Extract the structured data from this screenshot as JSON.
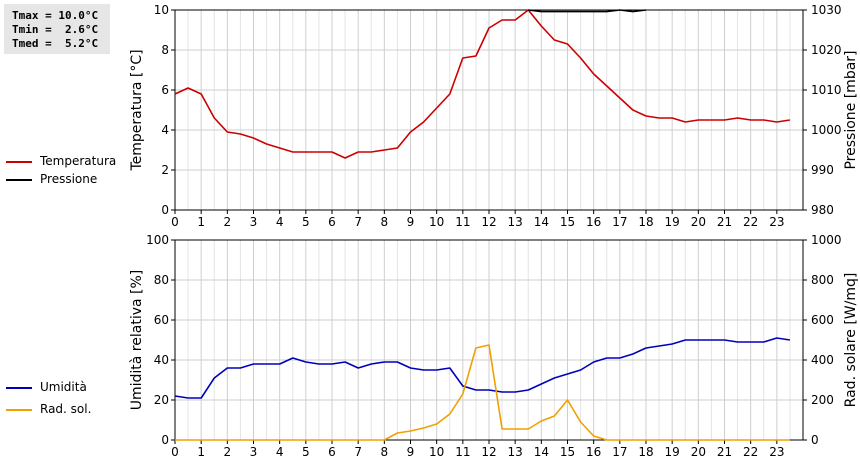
{
  "stats": {
    "tmax": "Tmax = 10.0°C",
    "tmin": "Tmin =  2.6°C",
    "tmed": "Tmed =  5.2°C"
  },
  "legend_top": [
    {
      "label": "Temperatura",
      "color": "#cc0000"
    },
    {
      "label": "Pressione",
      "color": "#000000"
    }
  ],
  "legend_bottom": [
    {
      "label": "Umidità",
      "color": "#0000bb"
    },
    {
      "label": "Rad. sol.",
      "color": "#f0a000"
    }
  ],
  "chart_data": [
    {
      "type": "line",
      "xlabel": "",
      "xlim": [
        0,
        24
      ],
      "xticks": [
        "0",
        "1",
        "2",
        "3",
        "4",
        "5",
        "6",
        "7",
        "8",
        "9",
        "10",
        "11",
        "12",
        "13",
        "14",
        "15",
        "16",
        "17",
        "18",
        "19",
        "20",
        "21",
        "22",
        "23"
      ],
      "ylabel_left": "Temperatura [°C]",
      "ylim_left": [
        0,
        10
      ],
      "yticks_left": [
        "0",
        "2",
        "4",
        "6",
        "8",
        "10"
      ],
      "ylabel_right": "Pressione [mbar]",
      "ylim_right": [
        980,
        1030
      ],
      "yticks_right": [
        "980",
        "990",
        "1000",
        "1010",
        "1020",
        "1030"
      ],
      "grid": true,
      "series": [
        {
          "name": "Temperatura",
          "axis": "left",
          "color": "#cc0000",
          "x": [
            0,
            0.5,
            1,
            1.5,
            2,
            2.5,
            3,
            3.5,
            4,
            4.5,
            5,
            5.5,
            6,
            6.5,
            7,
            7.5,
            8,
            8.5,
            9,
            9.5,
            10,
            10.5,
            11,
            11.5,
            12,
            12.5,
            13,
            13.5,
            14,
            14.5,
            15,
            15.5,
            16,
            16.5,
            17,
            17.5,
            18,
            18.5,
            19,
            19.5,
            20,
            20.5,
            21,
            21.5,
            22,
            22.5,
            23,
            23.5
          ],
          "values": [
            5.8,
            6.1,
            5.8,
            4.6,
            3.9,
            3.8,
            3.6,
            3.3,
            3.1,
            2.9,
            2.9,
            2.9,
            2.9,
            2.6,
            2.9,
            2.9,
            3.0,
            3.1,
            3.9,
            4.4,
            5.1,
            5.8,
            7.6,
            7.7,
            9.1,
            9.5,
            9.5,
            10.0,
            9.2,
            8.5,
            8.3,
            7.6,
            6.8,
            6.2,
            5.6,
            5.0,
            4.7,
            4.6,
            4.6,
            4.4,
            4.5,
            4.5,
            4.5,
            4.6,
            4.5,
            4.5,
            4.4,
            4.5
          ]
        },
        {
          "name": "Pressione",
          "axis": "right",
          "color": "#000000",
          "x": [
            13.5,
            14,
            14.5,
            15,
            15.5,
            16,
            16.5,
            17,
            17.5,
            18
          ],
          "values": [
            1030.0,
            1029.6,
            1029.6,
            1029.6,
            1029.6,
            1029.6,
            1029.6,
            1030.0,
            1029.6,
            1030.0
          ]
        }
      ]
    },
    {
      "type": "line",
      "xlabel": "",
      "xlim": [
        0,
        24
      ],
      "xticks": [
        "0",
        "1",
        "2",
        "3",
        "4",
        "5",
        "6",
        "7",
        "8",
        "9",
        "10",
        "11",
        "12",
        "13",
        "14",
        "15",
        "16",
        "17",
        "18",
        "19",
        "20",
        "21",
        "22",
        "23"
      ],
      "ylabel_left": "Umidità relativa [%]",
      "ylim_left": [
        0,
        100
      ],
      "yticks_left": [
        "0",
        "20",
        "40",
        "60",
        "80",
        "100"
      ],
      "ylabel_right": "Rad. solare [W/mq]",
      "ylim_right": [
        0,
        1000
      ],
      "yticks_right": [
        "0",
        "200",
        "400",
        "600",
        "800",
        "1000"
      ],
      "grid": true,
      "series": [
        {
          "name": "Umidità",
          "axis": "left",
          "color": "#0000bb",
          "x": [
            0,
            0.5,
            1,
            1.5,
            2,
            2.5,
            3,
            3.5,
            4,
            4.5,
            5,
            5.5,
            6,
            6.5,
            7,
            7.5,
            8,
            8.5,
            9,
            9.5,
            10,
            10.5,
            11,
            11.5,
            12,
            12.5,
            13,
            13.5,
            14,
            14.5,
            15,
            15.5,
            16,
            16.5,
            17,
            17.5,
            18,
            18.5,
            19,
            19.5,
            20,
            20.5,
            21,
            21.5,
            22,
            22.5,
            23,
            23.5
          ],
          "values": [
            22,
            21,
            21,
            31,
            36,
            36,
            38,
            38,
            38,
            41,
            39,
            38,
            38,
            39,
            36,
            38,
            39,
            39,
            36,
            35,
            35,
            36,
            27,
            25,
            25,
            24,
            24,
            25,
            28,
            31,
            33,
            35,
            39,
            41,
            41,
            43,
            46,
            47,
            48,
            50,
            50,
            50,
            50,
            49,
            49,
            49,
            51,
            50
          ]
        },
        {
          "name": "Rad. sol.",
          "axis": "right",
          "color": "#f0a000",
          "x": [
            0,
            0.5,
            1,
            1.5,
            2,
            2.5,
            3,
            3.5,
            4,
            4.5,
            5,
            5.5,
            6,
            6.5,
            7,
            7.5,
            8,
            8.5,
            9,
            9.5,
            10,
            10.5,
            11,
            11.5,
            12,
            12.5,
            13,
            13.5,
            14,
            14.5,
            15,
            15.5,
            16,
            16.5,
            17,
            17.5,
            18,
            18.5,
            19,
            19.5,
            20,
            20.5,
            21,
            21.5,
            22,
            22.5,
            23,
            23.5
          ],
          "values": [
            0,
            0,
            0,
            0,
            0,
            0,
            0,
            0,
            0,
            0,
            0,
            0,
            0,
            0,
            0,
            0,
            0,
            35,
            45,
            60,
            80,
            130,
            230,
            460,
            475,
            55,
            55,
            55,
            95,
            120,
            200,
            90,
            20,
            0,
            0,
            0,
            0,
            0,
            0,
            0,
            0,
            0,
            0,
            0,
            0,
            0,
            0,
            0
          ]
        }
      ]
    }
  ]
}
